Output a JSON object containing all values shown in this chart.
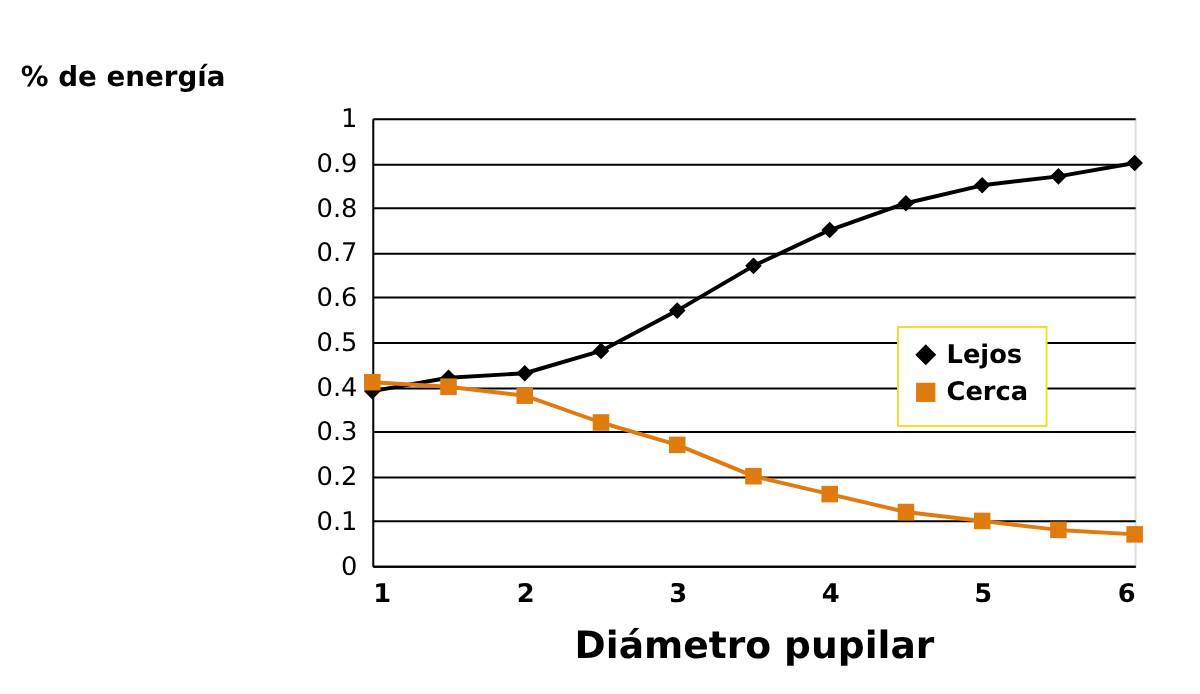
{
  "chart_data": {
    "type": "line",
    "xlabel": "Diámetro pupilar",
    "ylabel": "% de energía",
    "x": [
      1,
      1.5,
      2,
      2.5,
      3,
      3.5,
      4,
      4.5,
      5,
      5.5,
      6
    ],
    "series": [
      {
        "name": "Lejos",
        "color": "#000000",
        "marker": "diamond",
        "values": [
          0.39,
          0.42,
          0.43,
          0.48,
          0.57,
          0.67,
          0.75,
          0.81,
          0.85,
          0.87,
          0.9
        ]
      },
      {
        "name": "Cerca",
        "color": "#e07b10",
        "marker": "square",
        "values": [
          0.41,
          0.4,
          0.38,
          0.32,
          0.27,
          0.2,
          0.16,
          0.12,
          0.1,
          0.08,
          0.07
        ]
      }
    ],
    "xlim": [
      1,
      6
    ],
    "xticks": [
      1,
      2,
      3,
      4,
      5,
      6
    ],
    "ylim": [
      0,
      1
    ],
    "yticks": [
      0,
      0.1,
      0.2,
      0.3,
      0.4,
      0.5,
      0.6,
      0.7,
      0.8,
      0.9,
      1
    ],
    "grid": "y",
    "legend": "right",
    "line_style": "solid"
  }
}
